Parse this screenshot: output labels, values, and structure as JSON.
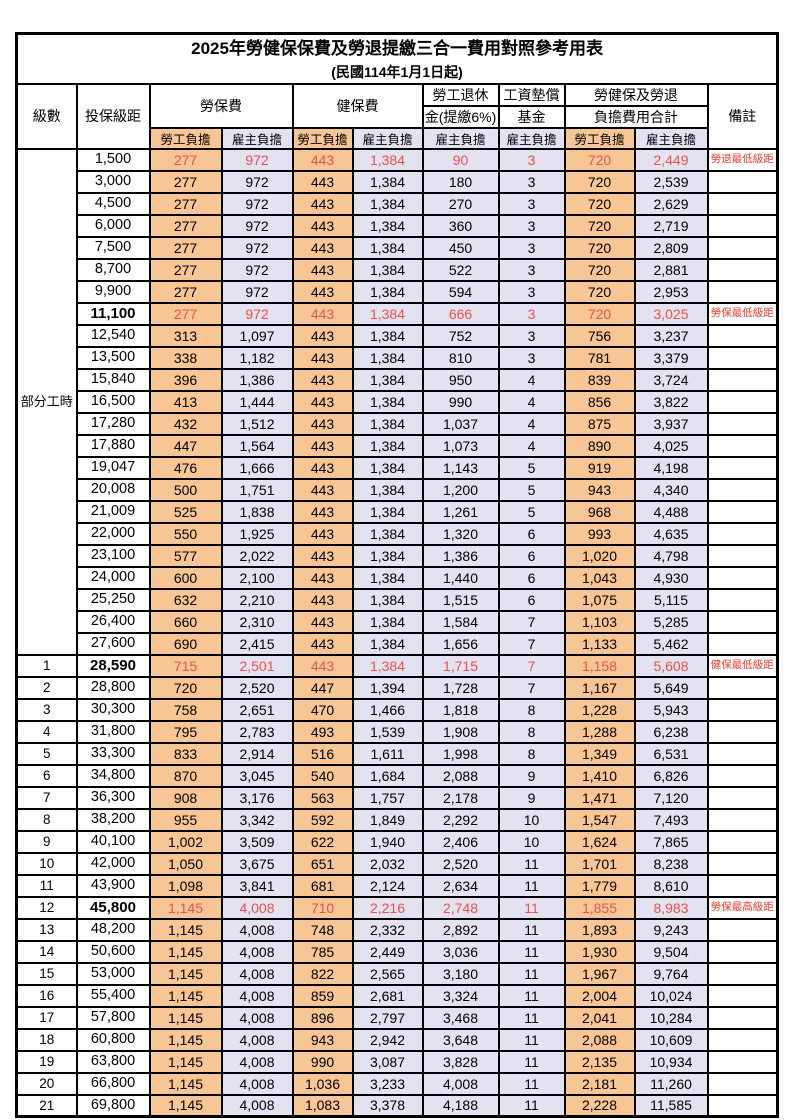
{
  "title": "2025年勞健保保費及勞退提繳三合一費用對照參考用表",
  "subtitle": "(民國114年1月1日起)",
  "colors": {
    "employee_column_bg": "#F8C694",
    "employer_column_bg": "#E4E1F1",
    "highlight_value_red": "#E8524A",
    "note_red": "#F43B30"
  },
  "header": {
    "level": "級數",
    "bracket": "投保級距",
    "labor_insurance": "勞保費",
    "health_insurance": "健保費",
    "pension_line1": "勞工退休",
    "pension_line2": "金(提繳6%)",
    "wage_fund_line1": "工資墊償",
    "wage_fund_line2": "基金",
    "total_line1": "勞健保及勞退",
    "total_line2": "負擔費用合計",
    "note": "備註",
    "employee": "勞工負擔",
    "employer": "雇主負擔"
  },
  "part_time": {
    "label": "部分工時",
    "rowspan": 23
  },
  "rows": [
    {
      "level": null,
      "bracket": "1,500",
      "values": [
        "277",
        "972",
        "443",
        "1,384",
        "90",
        "3",
        "720",
        "2,449"
      ],
      "note": "勞退最低級距",
      "red": true,
      "bold": false
    },
    {
      "level": null,
      "bracket": "3,000",
      "values": [
        "277",
        "972",
        "443",
        "1,384",
        "180",
        "3",
        "720",
        "2,539"
      ],
      "note": "",
      "red": false,
      "bold": false
    },
    {
      "level": null,
      "bracket": "4,500",
      "values": [
        "277",
        "972",
        "443",
        "1,384",
        "270",
        "3",
        "720",
        "2,629"
      ],
      "note": "",
      "red": false,
      "bold": false
    },
    {
      "level": null,
      "bracket": "6,000",
      "values": [
        "277",
        "972",
        "443",
        "1,384",
        "360",
        "3",
        "720",
        "2,719"
      ],
      "note": "",
      "red": false,
      "bold": false
    },
    {
      "level": null,
      "bracket": "7,500",
      "values": [
        "277",
        "972",
        "443",
        "1,384",
        "450",
        "3",
        "720",
        "2,809"
      ],
      "note": "",
      "red": false,
      "bold": false
    },
    {
      "level": null,
      "bracket": "8,700",
      "values": [
        "277",
        "972",
        "443",
        "1,384",
        "522",
        "3",
        "720",
        "2,881"
      ],
      "note": "",
      "red": false,
      "bold": false
    },
    {
      "level": null,
      "bracket": "9,900",
      "values": [
        "277",
        "972",
        "443",
        "1,384",
        "594",
        "3",
        "720",
        "2,953"
      ],
      "note": "",
      "red": false,
      "bold": false
    },
    {
      "level": null,
      "bracket": "11,100",
      "values": [
        "277",
        "972",
        "443",
        "1,384",
        "666",
        "3",
        "720",
        "3,025"
      ],
      "note": "勞保最低級距",
      "red": true,
      "bold": true
    },
    {
      "level": null,
      "bracket": "12,540",
      "values": [
        "313",
        "1,097",
        "443",
        "1,384",
        "752",
        "3",
        "756",
        "3,237"
      ],
      "note": "",
      "red": false,
      "bold": false
    },
    {
      "level": null,
      "bracket": "13,500",
      "values": [
        "338",
        "1,182",
        "443",
        "1,384",
        "810",
        "3",
        "781",
        "3,379"
      ],
      "note": "",
      "red": false,
      "bold": false
    },
    {
      "level": null,
      "bracket": "15,840",
      "values": [
        "396",
        "1,386",
        "443",
        "1,384",
        "950",
        "4",
        "839",
        "3,724"
      ],
      "note": "",
      "red": false,
      "bold": false
    },
    {
      "level": null,
      "bracket": "16,500",
      "values": [
        "413",
        "1,444",
        "443",
        "1,384",
        "990",
        "4",
        "856",
        "3,822"
      ],
      "note": "",
      "red": false,
      "bold": false
    },
    {
      "level": null,
      "bracket": "17,280",
      "values": [
        "432",
        "1,512",
        "443",
        "1,384",
        "1,037",
        "4",
        "875",
        "3,937"
      ],
      "note": "",
      "red": false,
      "bold": false
    },
    {
      "level": null,
      "bracket": "17,880",
      "values": [
        "447",
        "1,564",
        "443",
        "1,384",
        "1,073",
        "4",
        "890",
        "4,025"
      ],
      "note": "",
      "red": false,
      "bold": false
    },
    {
      "level": null,
      "bracket": "19,047",
      "values": [
        "476",
        "1,666",
        "443",
        "1,384",
        "1,143",
        "5",
        "919",
        "4,198"
      ],
      "note": "",
      "red": false,
      "bold": false
    },
    {
      "level": null,
      "bracket": "20,008",
      "values": [
        "500",
        "1,751",
        "443",
        "1,384",
        "1,200",
        "5",
        "943",
        "4,340"
      ],
      "note": "",
      "red": false,
      "bold": false
    },
    {
      "level": null,
      "bracket": "21,009",
      "values": [
        "525",
        "1,838",
        "443",
        "1,384",
        "1,261",
        "5",
        "968",
        "4,488"
      ],
      "note": "",
      "red": false,
      "bold": false
    },
    {
      "level": null,
      "bracket": "22,000",
      "values": [
        "550",
        "1,925",
        "443",
        "1,384",
        "1,320",
        "6",
        "993",
        "4,635"
      ],
      "note": "",
      "red": false,
      "bold": false
    },
    {
      "level": null,
      "bracket": "23,100",
      "values": [
        "577",
        "2,022",
        "443",
        "1,384",
        "1,386",
        "6",
        "1,020",
        "4,798"
      ],
      "note": "",
      "red": false,
      "bold": false
    },
    {
      "level": null,
      "bracket": "24,000",
      "values": [
        "600",
        "2,100",
        "443",
        "1,384",
        "1,440",
        "6",
        "1,043",
        "4,930"
      ],
      "note": "",
      "red": false,
      "bold": false
    },
    {
      "level": null,
      "bracket": "25,250",
      "values": [
        "632",
        "2,210",
        "443",
        "1,384",
        "1,515",
        "6",
        "1,075",
        "5,115"
      ],
      "note": "",
      "red": false,
      "bold": false
    },
    {
      "level": null,
      "bracket": "26,400",
      "values": [
        "660",
        "2,310",
        "443",
        "1,384",
        "1,584",
        "7",
        "1,103",
        "5,285"
      ],
      "note": "",
      "red": false,
      "bold": false
    },
    {
      "level": null,
      "bracket": "27,600",
      "values": [
        "690",
        "2,415",
        "443",
        "1,384",
        "1,656",
        "7",
        "1,133",
        "5,462"
      ],
      "note": "",
      "red": false,
      "bold": false
    },
    {
      "level": "1",
      "bracket": "28,590",
      "values": [
        "715",
        "2,501",
        "443",
        "1,384",
        "1,715",
        "7",
        "1,158",
        "5,608"
      ],
      "note": "健保最低級距",
      "red": true,
      "bold": true
    },
    {
      "level": "2",
      "bracket": "28,800",
      "values": [
        "720",
        "2,520",
        "447",
        "1,394",
        "1,728",
        "7",
        "1,167",
        "5,649"
      ],
      "note": "",
      "red": false,
      "bold": false
    },
    {
      "level": "3",
      "bracket": "30,300",
      "values": [
        "758",
        "2,651",
        "470",
        "1,466",
        "1,818",
        "8",
        "1,228",
        "5,943"
      ],
      "note": "",
      "red": false,
      "bold": false
    },
    {
      "level": "4",
      "bracket": "31,800",
      "values": [
        "795",
        "2,783",
        "493",
        "1,539",
        "1,908",
        "8",
        "1,288",
        "6,238"
      ],
      "note": "",
      "red": false,
      "bold": false
    },
    {
      "level": "5",
      "bracket": "33,300",
      "values": [
        "833",
        "2,914",
        "516",
        "1,611",
        "1,998",
        "8",
        "1,349",
        "6,531"
      ],
      "note": "",
      "red": false,
      "bold": false
    },
    {
      "level": "6",
      "bracket": "34,800",
      "values": [
        "870",
        "3,045",
        "540",
        "1,684",
        "2,088",
        "9",
        "1,410",
        "6,826"
      ],
      "note": "",
      "red": false,
      "bold": false
    },
    {
      "level": "7",
      "bracket": "36,300",
      "values": [
        "908",
        "3,176",
        "563",
        "1,757",
        "2,178",
        "9",
        "1,471",
        "7,120"
      ],
      "note": "",
      "red": false,
      "bold": false
    },
    {
      "level": "8",
      "bracket": "38,200",
      "values": [
        "955",
        "3,342",
        "592",
        "1,849",
        "2,292",
        "10",
        "1,547",
        "7,493"
      ],
      "note": "",
      "red": false,
      "bold": false
    },
    {
      "level": "9",
      "bracket": "40,100",
      "values": [
        "1,002",
        "3,509",
        "622",
        "1,940",
        "2,406",
        "10",
        "1,624",
        "7,865"
      ],
      "note": "",
      "red": false,
      "bold": false
    },
    {
      "level": "10",
      "bracket": "42,000",
      "values": [
        "1,050",
        "3,675",
        "651",
        "2,032",
        "2,520",
        "11",
        "1,701",
        "8,238"
      ],
      "note": "",
      "red": false,
      "bold": false
    },
    {
      "level": "11",
      "bracket": "43,900",
      "values": [
        "1,098",
        "3,841",
        "681",
        "2,124",
        "2,634",
        "11",
        "1,779",
        "8,610"
      ],
      "note": "",
      "red": false,
      "bold": false
    },
    {
      "level": "12",
      "bracket": "45,800",
      "values": [
        "1,145",
        "4,008",
        "710",
        "2,216",
        "2,748",
        "11",
        "1,855",
        "8,983"
      ],
      "note": "勞保最高級距",
      "red": true,
      "bold": true
    },
    {
      "level": "13",
      "bracket": "48,200",
      "values": [
        "1,145",
        "4,008",
        "748",
        "2,332",
        "2,892",
        "11",
        "1,893",
        "9,243"
      ],
      "note": "",
      "red": false,
      "bold": false
    },
    {
      "level": "14",
      "bracket": "50,600",
      "values": [
        "1,145",
        "4,008",
        "785",
        "2,449",
        "3,036",
        "11",
        "1,930",
        "9,504"
      ],
      "note": "",
      "red": false,
      "bold": false
    },
    {
      "level": "15",
      "bracket": "53,000",
      "values": [
        "1,145",
        "4,008",
        "822",
        "2,565",
        "3,180",
        "11",
        "1,967",
        "9,764"
      ],
      "note": "",
      "red": false,
      "bold": false
    },
    {
      "level": "16",
      "bracket": "55,400",
      "values": [
        "1,145",
        "4,008",
        "859",
        "2,681",
        "3,324",
        "11",
        "2,004",
        "10,024"
      ],
      "note": "",
      "red": false,
      "bold": false
    },
    {
      "level": "17",
      "bracket": "57,800",
      "values": [
        "1,145",
        "4,008",
        "896",
        "2,797",
        "3,468",
        "11",
        "2,041",
        "10,284"
      ],
      "note": "",
      "red": false,
      "bold": false
    },
    {
      "level": "18",
      "bracket": "60,800",
      "values": [
        "1,145",
        "4,008",
        "943",
        "2,942",
        "3,648",
        "11",
        "2,088",
        "10,609"
      ],
      "note": "",
      "red": false,
      "bold": false
    },
    {
      "level": "19",
      "bracket": "63,800",
      "values": [
        "1,145",
        "4,008",
        "990",
        "3,087",
        "3,828",
        "11",
        "2,135",
        "10,934"
      ],
      "note": "",
      "red": false,
      "bold": false
    },
    {
      "level": "20",
      "bracket": "66,800",
      "values": [
        "1,145",
        "4,008",
        "1,036",
        "3,233",
        "4,008",
        "11",
        "2,181",
        "11,260"
      ],
      "note": "",
      "red": false,
      "bold": false
    },
    {
      "level": "21",
      "bracket": "69,800",
      "values": [
        "1,145",
        "4,008",
        "1,083",
        "3,378",
        "4,188",
        "11",
        "2,228",
        "11,585"
      ],
      "note": "",
      "red": false,
      "bold": false
    }
  ]
}
